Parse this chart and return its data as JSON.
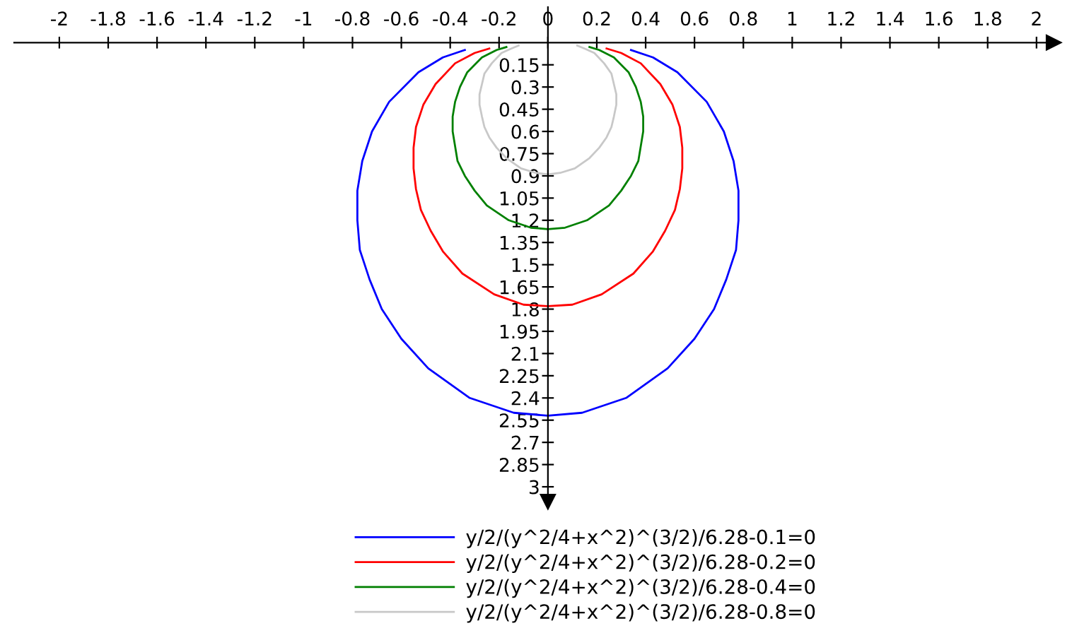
{
  "chart_data": {
    "type": "line",
    "xlim": [
      -2.185,
      2.07
    ],
    "ylim": [
      3.1,
      -0.24
    ],
    "xticks": [
      -2,
      -1.8,
      -1.6,
      -1.4,
      -1.2,
      -1,
      -0.8,
      -0.6,
      -0.4,
      -0.2,
      0,
      0.2,
      0.4,
      0.6,
      0.8,
      1,
      1.2,
      1.4,
      1.6,
      1.8,
      2
    ],
    "yticks": [
      0.15,
      0.3,
      0.45,
      0.6,
      0.75,
      0.9,
      1.05,
      1.2,
      1.35,
      1.5,
      1.65,
      1.8,
      1.95,
      2.1,
      2.25,
      2.4,
      2.55,
      2.7,
      2.85,
      3
    ],
    "grid": false,
    "legend": "bottom",
    "marker": "none",
    "line_style": "solid",
    "series": [
      {
        "name": "y/2/(y^2/4+x^2)^(3/2)/6.28-0.1=0",
        "color": "#0000ff",
        "x": [
          -0.34,
          -0.43,
          -0.53,
          -0.65,
          -0.72,
          -0.76,
          -0.78,
          -0.78,
          -0.77,
          -0.73,
          -0.68,
          -0.6,
          -0.49,
          -0.32,
          -0.14,
          0,
          0.14,
          0.32,
          0.49,
          0.6,
          0.68,
          0.73,
          0.77,
          0.78,
          0.78,
          0.76,
          0.72,
          0.65,
          0.53,
          0.43,
          0.34
        ],
        "values": [
          0.05,
          0.1,
          0.2,
          0.4,
          0.6,
          0.8,
          1.0,
          1.2,
          1.4,
          1.6,
          1.8,
          2.0,
          2.2,
          2.4,
          2.5,
          2.52,
          2.5,
          2.4,
          2.2,
          2.0,
          1.8,
          1.6,
          1.4,
          1.2,
          1.0,
          0.8,
          0.6,
          0.4,
          0.2,
          0.1,
          0.05
        ]
      },
      {
        "name": "y/2/(y^2/4+x^2)^(3/2)/6.28-0.2=0",
        "color": "#ff0000",
        "x": [
          -0.24,
          -0.3,
          -0.38,
          -0.46,
          -0.51,
          -0.54,
          -0.55,
          -0.55,
          -0.54,
          -0.52,
          -0.48,
          -0.43,
          -0.35,
          -0.22,
          -0.1,
          0,
          0.1,
          0.22,
          0.35,
          0.43,
          0.48,
          0.52,
          0.54,
          0.55,
          0.55,
          0.54,
          0.51,
          0.46,
          0.38,
          0.3,
          0.24
        ],
        "values": [
          0.04,
          0.07,
          0.14,
          0.28,
          0.42,
          0.57,
          0.71,
          0.85,
          0.99,
          1.13,
          1.27,
          1.41,
          1.56,
          1.7,
          1.77,
          1.78,
          1.77,
          1.7,
          1.56,
          1.41,
          1.27,
          1.13,
          0.99,
          0.85,
          0.71,
          0.57,
          0.42,
          0.28,
          0.14,
          0.07,
          0.04
        ]
      },
      {
        "name": "y/2/(y^2/4+x^2)^(3/2)/6.28-0.4=0",
        "color": "#008000",
        "x": [
          -0.17,
          -0.21,
          -0.27,
          -0.33,
          -0.36,
          -0.38,
          -0.39,
          -0.39,
          -0.38,
          -0.37,
          -0.34,
          -0.3,
          -0.25,
          -0.16,
          -0.07,
          0,
          0.07,
          0.16,
          0.25,
          0.3,
          0.34,
          0.37,
          0.38,
          0.39,
          0.39,
          0.38,
          0.36,
          0.33,
          0.27,
          0.21,
          0.17
        ],
        "values": [
          0.03,
          0.05,
          0.1,
          0.2,
          0.3,
          0.4,
          0.5,
          0.6,
          0.7,
          0.8,
          0.9,
          1.0,
          1.1,
          1.2,
          1.25,
          1.26,
          1.25,
          1.2,
          1.1,
          1.0,
          0.9,
          0.8,
          0.7,
          0.6,
          0.5,
          0.4,
          0.3,
          0.2,
          0.1,
          0.05,
          0.03
        ]
      },
      {
        "name": "y/2/(y^2/4+x^2)^(3/2)/6.28-0.8=0",
        "color": "#c8c8c8",
        "x": [
          -0.12,
          -0.15,
          -0.19,
          -0.23,
          -0.26,
          -0.27,
          -0.28,
          -0.28,
          -0.27,
          -0.26,
          -0.24,
          -0.21,
          -0.17,
          -0.11,
          -0.05,
          0,
          0.05,
          0.11,
          0.17,
          0.21,
          0.24,
          0.26,
          0.27,
          0.28,
          0.28,
          0.27,
          0.26,
          0.23,
          0.19,
          0.15,
          0.12
        ],
        "values": [
          0.02,
          0.04,
          0.07,
          0.14,
          0.21,
          0.28,
          0.35,
          0.42,
          0.5,
          0.57,
          0.64,
          0.71,
          0.78,
          0.85,
          0.88,
          0.89,
          0.88,
          0.85,
          0.78,
          0.71,
          0.64,
          0.57,
          0.5,
          0.42,
          0.35,
          0.28,
          0.21,
          0.14,
          0.07,
          0.04,
          0.02
        ]
      }
    ]
  }
}
